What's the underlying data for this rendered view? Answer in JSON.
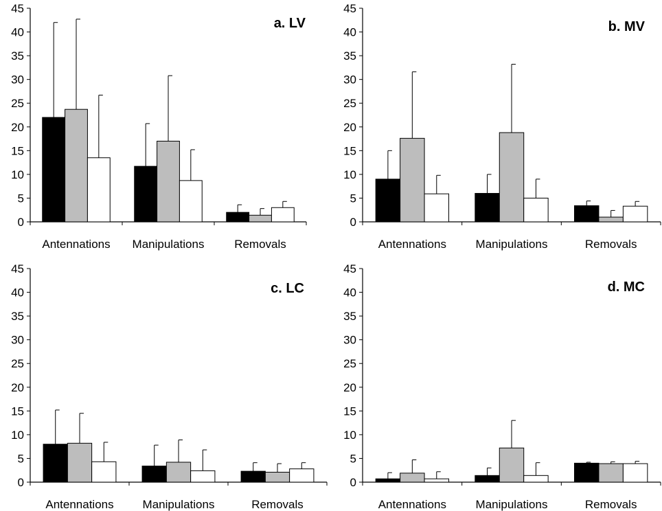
{
  "chart_data": [
    {
      "type": "bar",
      "title": "a. LV",
      "categories": [
        "Antennations",
        "Manipulations",
        "Removals"
      ],
      "ylim": [
        0,
        45
      ],
      "yticks": [
        0,
        5,
        10,
        15,
        20,
        25,
        30,
        35,
        40,
        45
      ],
      "grid": false,
      "colors": [
        "#000000",
        "#bdbdbd",
        "#ffffff"
      ],
      "series": [
        {
          "values": [
            22.0,
            11.7,
            2.0
          ],
          "errors": [
            20.0,
            9.0,
            1.6
          ]
        },
        {
          "values": [
            23.7,
            17.0,
            1.4
          ],
          "errors": [
            19.0,
            13.8,
            1.4
          ]
        },
        {
          "values": [
            13.5,
            8.7,
            3.0
          ],
          "errors": [
            13.2,
            6.5,
            1.3
          ]
        }
      ]
    },
    {
      "type": "bar",
      "title": "b. MV",
      "categories": [
        "Antennations",
        "Manipulations",
        "Removals"
      ],
      "ylim": [
        0,
        45
      ],
      "yticks": [
        0,
        5,
        10,
        15,
        20,
        25,
        30,
        35,
        40,
        45
      ],
      "grid": false,
      "colors": [
        "#000000",
        "#bdbdbd",
        "#ffffff"
      ],
      "series": [
        {
          "values": [
            9.0,
            6.0,
            3.4
          ],
          "errors": [
            6.0,
            4.0,
            1.0
          ]
        },
        {
          "values": [
            17.6,
            18.8,
            1.0
          ],
          "errors": [
            14.0,
            14.4,
            1.4
          ]
        },
        {
          "values": [
            5.9,
            5.0,
            3.3
          ],
          "errors": [
            3.9,
            4.0,
            1.0
          ]
        }
      ]
    },
    {
      "type": "bar",
      "title": "c. LC",
      "categories": [
        "Antennations",
        "Manipulations",
        "Removals"
      ],
      "ylim": [
        0,
        45
      ],
      "yticks": [
        0,
        5,
        10,
        15,
        20,
        25,
        30,
        35,
        40,
        45
      ],
      "grid": false,
      "colors": [
        "#000000",
        "#bdbdbd",
        "#ffffff"
      ],
      "series": [
        {
          "values": [
            8.0,
            3.4,
            2.3
          ],
          "errors": [
            7.2,
            4.4,
            1.8
          ]
        },
        {
          "values": [
            8.2,
            4.2,
            2.1
          ],
          "errors": [
            6.3,
            4.7,
            1.8
          ]
        },
        {
          "values": [
            4.3,
            2.4,
            2.8
          ],
          "errors": [
            4.1,
            4.4,
            1.3
          ]
        }
      ]
    },
    {
      "type": "bar",
      "title": "d. MC",
      "categories": [
        "Antennations",
        "Manipulations",
        "Removals"
      ],
      "ylim": [
        0,
        45
      ],
      "yticks": [
        0,
        5,
        10,
        15,
        20,
        25,
        30,
        35,
        40,
        45
      ],
      "grid": false,
      "colors": [
        "#000000",
        "#bdbdbd",
        "#ffffff"
      ],
      "series": [
        {
          "values": [
            0.7,
            1.4,
            4.0
          ],
          "errors": [
            1.3,
            1.6,
            0.2
          ]
        },
        {
          "values": [
            1.9,
            7.2,
            3.9
          ],
          "errors": [
            2.8,
            5.8,
            0.4
          ]
        },
        {
          "values": [
            0.7,
            1.4,
            3.9
          ],
          "errors": [
            1.5,
            2.7,
            0.5
          ]
        }
      ]
    }
  ]
}
